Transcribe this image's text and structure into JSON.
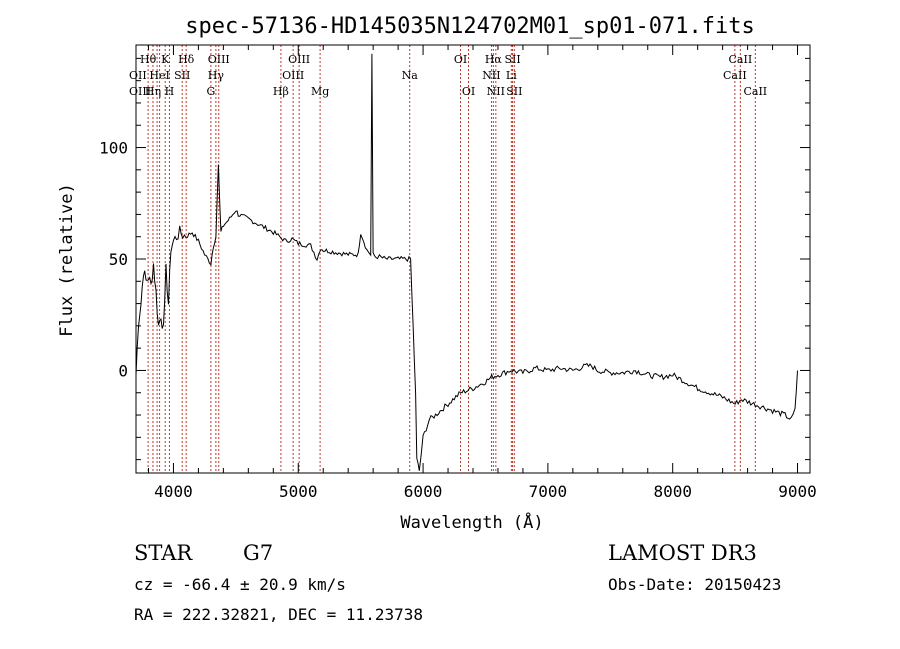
{
  "chart_data": {
    "type": "line",
    "title": "spec-57136-HD145035N124702M01_sp01-071.fits",
    "xlabel": "Wavelength (Å)",
    "ylabel": "Flux (relative)",
    "xlim": [
      3700,
      9100
    ],
    "ylim": [
      -46,
      146
    ],
    "x_ticks": [
      4000,
      5000,
      6000,
      7000,
      8000,
      9000
    ],
    "y_ticks": [
      0,
      50,
      100
    ],
    "grid": false,
    "series": [
      {
        "x": [
          3700,
          3720,
          3740,
          3760,
          3780,
          3800,
          3820,
          3840,
          3860,
          3880,
          3900,
          3920,
          3940,
          3960,
          3980,
          4000,
          4050,
          4100,
          4150,
          4200,
          4250,
          4300,
          4320,
          4340,
          4360,
          4380,
          4400,
          4450,
          4500,
          4520,
          4600,
          4700,
          4800,
          4850,
          4900,
          4950,
          5000,
          5100,
          5150,
          5180,
          5200,
          5300,
          5400,
          5480,
          5500,
          5550,
          5580,
          5590,
          5600,
          5620,
          5650,
          5700,
          5750,
          5800,
          5850,
          5900,
          5920,
          5940,
          5950,
          5970,
          6000,
          6050,
          6100,
          6200,
          6300,
          6400,
          6500,
          6550,
          6600,
          6700,
          6800,
          6900,
          7000,
          7100,
          7200,
          7300,
          7350,
          7400,
          7500,
          7600,
          7700,
          7800,
          7900,
          8000,
          8100,
          8200,
          8300,
          8400,
          8500,
          8550,
          8600,
          8700,
          8800,
          8900,
          8950,
          8980,
          9000
        ],
        "y": [
          -2,
          22,
          30,
          45,
          40,
          42,
          38,
          48,
          35,
          20,
          25,
          18,
          45,
          30,
          55,
          58,
          62,
          60,
          62,
          58,
          52,
          48,
          56,
          60,
          92,
          62,
          65,
          68,
          72,
          70,
          68,
          65,
          62,
          60,
          58,
          59,
          57,
          56,
          50,
          55,
          54,
          53,
          52,
          52,
          62,
          54,
          52,
          142,
          52,
          51,
          51,
          50,
          50,
          50,
          50,
          50,
          20,
          -10,
          -40,
          -45,
          -30,
          -22,
          -20,
          -15,
          -10,
          -8,
          -5,
          -3,
          -2,
          0,
          -1,
          1,
          0,
          1,
          0,
          2,
          2,
          0,
          -1,
          -1,
          0,
          -2,
          -3,
          -2,
          -5,
          -8,
          -10,
          -12,
          -15,
          -13,
          -14,
          -16,
          -18,
          -20,
          -22,
          -18,
          0
        ]
      }
    ],
    "line_markers": [
      {
        "wl": 3797,
        "label": "Hθ",
        "row": 1
      },
      {
        "wl": 3836,
        "label": "Hη",
        "row": 3
      },
      {
        "wl": 3869,
        "label": "",
        "row": 0
      },
      {
        "wl": 3889,
        "label": "HeI",
        "row": 2
      },
      {
        "wl": 3934,
        "label": "K",
        "row": 1
      },
      {
        "wl": 3968,
        "label": "H",
        "row": 3
      },
      {
        "wl": 4102,
        "label": "Hδ",
        "row": 1
      },
      {
        "wl": 4070,
        "label": "SII",
        "row": 2
      },
      {
        "wl": 4300,
        "label": "G",
        "row": 3
      },
      {
        "wl": 4340,
        "label": "Hγ",
        "row": 2
      },
      {
        "wl": 4363,
        "label": "OIII",
        "row": 1
      },
      {
        "wl": 4861,
        "label": "Hβ",
        "row": 3
      },
      {
        "wl": 4959,
        "label": "OIII",
        "row": 2
      },
      {
        "wl": 5007,
        "label": "OIII",
        "row": 1
      },
      {
        "wl": 5175,
        "label": "Mg",
        "row": 3
      },
      {
        "wl": 5893,
        "label": "Na",
        "row": 2
      },
      {
        "wl": 6300,
        "label": "OI",
        "row": 1
      },
      {
        "wl": 6364,
        "label": "OI",
        "row": 3
      },
      {
        "wl": 6548,
        "label": "NII",
        "row": 2
      },
      {
        "wl": 6563,
        "label": "Hα",
        "row": 1
      },
      {
        "wl": 6583,
        "label": "NII",
        "row": 3
      },
      {
        "wl": 6707,
        "label": "Li",
        "row": 2
      },
      {
        "wl": 6717,
        "label": "SII",
        "row": 1
      },
      {
        "wl": 6731,
        "label": "SII",
        "row": 3
      },
      {
        "wl": 8498,
        "label": "CaII",
        "row": 2
      },
      {
        "wl": 8542,
        "label": "CaII",
        "row": 1
      },
      {
        "wl": 8662,
        "label": "CaII",
        "row": 3
      }
    ]
  },
  "marker_prefix_labels": {
    "row2_left": "OII",
    "row3_left": "OIII"
  },
  "info": {
    "object_type": "STAR",
    "subclass": "G7",
    "survey": "LAMOST DR3",
    "cz": "cz = -66.4 ± 20.9 km/s",
    "obs_date": "Obs-Date: 20150423",
    "coords": "RA = 222.32821, DEC =  11.23738"
  }
}
